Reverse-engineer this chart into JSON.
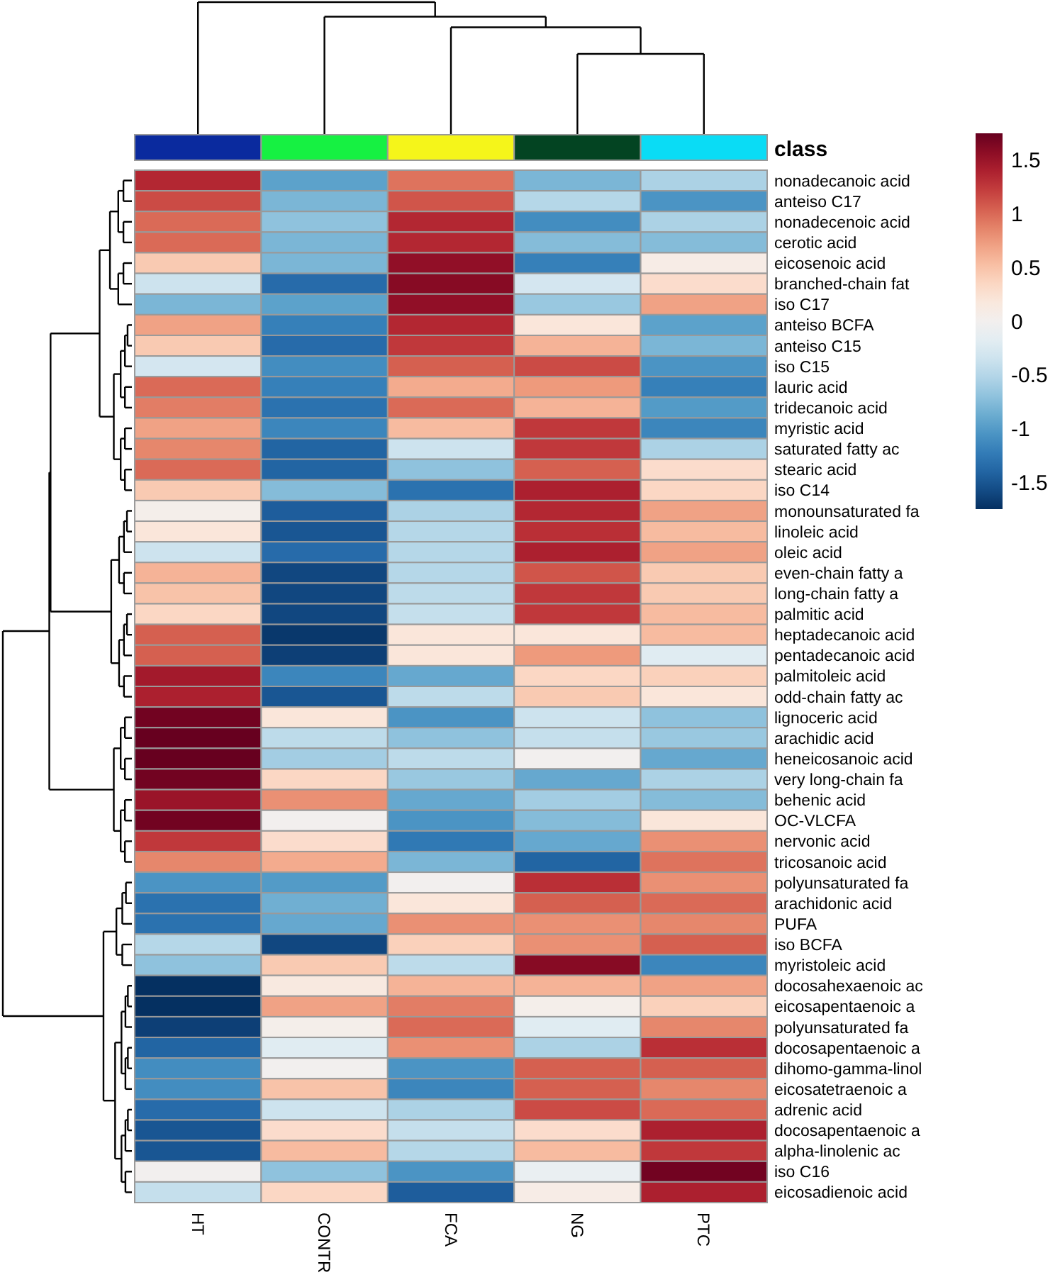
{
  "chart_data": {
    "type": "heatmap",
    "categories": [
      "HT",
      "CONTR",
      "FCA",
      "NG",
      "PTC"
    ],
    "y_categories": [
      "nonadecanoic acid",
      "anteiso C17",
      "nonadecenoic acid",
      "cerotic acid",
      "eicosenoic acid",
      "branched-chain fat",
      "iso C17",
      "anteiso BCFA",
      "anteiso C15",
      "iso C15",
      "lauric acid",
      "tridecanoic acid",
      "myristic acid",
      "saturated fatty ac",
      "stearic acid",
      "iso C14",
      "monounsaturated fa",
      "linoleic acid",
      "oleic acid",
      "even-chain fatty a",
      "long-chain fatty a",
      "palmitic acid",
      "heptadecanoic acid",
      "pentadecanoic acid",
      "palmitoleic acid",
      "odd-chain fatty ac",
      "lignoceric acid",
      "arachidic acid",
      "heneicosanoic acid",
      "very long-chain fa",
      "behenic acid",
      "OC-VLCFA",
      "nervonic acid",
      "tricosanoic acid",
      "polyunsaturated fa",
      "arachidonic acid",
      "PUFA",
      "iso BCFA",
      "myristoleic acid",
      "docosahexaenoic ac",
      "eicosapentaenoic a",
      "polyunsaturated fa",
      "docosapentaenoic a",
      "dihomo-gamma-linol",
      "eicosatetraenoic a",
      "adrenic acid",
      "docosapentaenoic a",
      "alpha-linolenic ac",
      "iso C16",
      "eicosadienoic acid"
    ],
    "cells": [
      [
        1.35,
        -0.95,
        0.95,
        -0.8,
        -0.55
      ],
      [
        1.15,
        -0.8,
        1.1,
        -0.5,
        -1.05
      ],
      [
        1.0,
        -0.7,
        1.35,
        -1.1,
        -0.55
      ],
      [
        1.0,
        -0.8,
        1.35,
        -0.75,
        -0.75
      ],
      [
        0.45,
        -0.8,
        1.55,
        -1.2,
        0.1
      ],
      [
        -0.35,
        -1.35,
        1.6,
        -0.3,
        0.3
      ],
      [
        -0.8,
        -0.95,
        1.55,
        -0.65,
        0.7
      ],
      [
        0.7,
        -1.2,
        1.35,
        0.2,
        -0.95
      ],
      [
        0.45,
        -1.35,
        1.25,
        0.6,
        -0.8
      ],
      [
        -0.3,
        -1.1,
        1.05,
        1.15,
        -1.05
      ],
      [
        1.0,
        -1.2,
        0.65,
        0.75,
        -1.2
      ],
      [
        0.9,
        -1.3,
        1.0,
        0.6,
        -1.0
      ],
      [
        0.7,
        -1.15,
        0.55,
        1.25,
        -1.15
      ],
      [
        0.85,
        -1.4,
        -0.35,
        1.25,
        -0.55
      ],
      [
        1.0,
        -1.4,
        -0.7,
        1.05,
        0.3
      ],
      [
        0.45,
        -0.75,
        -1.3,
        1.4,
        0.35
      ],
      [
        0.05,
        -1.45,
        -0.55,
        1.35,
        0.7
      ],
      [
        0.2,
        -1.5,
        -0.5,
        1.3,
        0.55
      ],
      [
        -0.35,
        -1.35,
        -0.5,
        1.4,
        0.7
      ],
      [
        0.6,
        -1.6,
        -0.5,
        1.1,
        0.45
      ],
      [
        0.5,
        -1.6,
        -0.45,
        1.25,
        0.45
      ],
      [
        0.35,
        -1.6,
        -0.4,
        1.25,
        0.55
      ],
      [
        1.05,
        -1.7,
        0.2,
        0.2,
        0.55
      ],
      [
        1.05,
        -1.65,
        0.2,
        0.75,
        -0.2
      ],
      [
        1.45,
        -1.15,
        -0.9,
        0.35,
        0.4
      ],
      [
        1.4,
        -1.5,
        -0.45,
        0.45,
        0.2
      ],
      [
        1.7,
        0.2,
        -1.05,
        -0.35,
        -0.7
      ],
      [
        1.75,
        -0.45,
        -0.7,
        -0.4,
        -0.65
      ],
      [
        1.75,
        -0.6,
        -0.45,
        0.0,
        -0.9
      ],
      [
        1.7,
        0.35,
        -0.65,
        -0.9,
        -0.55
      ],
      [
        1.5,
        0.8,
        -0.9,
        -0.6,
        -0.75
      ],
      [
        1.7,
        0.0,
        -1.05,
        -0.75,
        0.2
      ],
      [
        1.25,
        0.3,
        -1.25,
        -0.9,
        0.8
      ],
      [
        0.85,
        0.65,
        -0.8,
        -1.4,
        0.95
      ],
      [
        -1.05,
        -1.0,
        0.0,
        1.3,
        0.8
      ],
      [
        -1.3,
        -0.85,
        0.2,
        1.05,
        1.0
      ],
      [
        -1.3,
        -0.9,
        0.8,
        0.8,
        0.85
      ],
      [
        -0.5,
        -1.6,
        0.4,
        0.8,
        1.05
      ],
      [
        -0.7,
        0.45,
        -0.45,
        1.6,
        -1.15
      ],
      [
        -1.75,
        0.15,
        0.6,
        0.6,
        0.7
      ],
      [
        -1.75,
        0.7,
        0.9,
        0.05,
        0.4
      ],
      [
        -1.65,
        0.05,
        1.0,
        -0.2,
        0.85
      ],
      [
        -1.4,
        -0.2,
        0.8,
        -0.55,
        1.3
      ],
      [
        -1.1,
        0.0,
        -1.05,
        1.05,
        1.05
      ],
      [
        -1.1,
        0.5,
        -1.15,
        1.05,
        0.85
      ],
      [
        -1.35,
        -0.35,
        -0.55,
        1.15,
        1.0
      ],
      [
        -1.5,
        0.3,
        -0.4,
        0.3,
        1.4
      ],
      [
        -1.5,
        0.55,
        -0.5,
        0.55,
        1.25
      ],
      [
        0.0,
        -0.7,
        -1.05,
        -0.1,
        1.7
      ],
      [
        -0.4,
        0.35,
        -1.45,
        0.1,
        1.4
      ]
    ],
    "clim": [
      -1.75,
      1.75
    ],
    "cticks": [
      1.5,
      1,
      0.5,
      0,
      -0.5,
      -1,
      -1.5
    ],
    "annotations": [
      "class"
    ]
  }
}
